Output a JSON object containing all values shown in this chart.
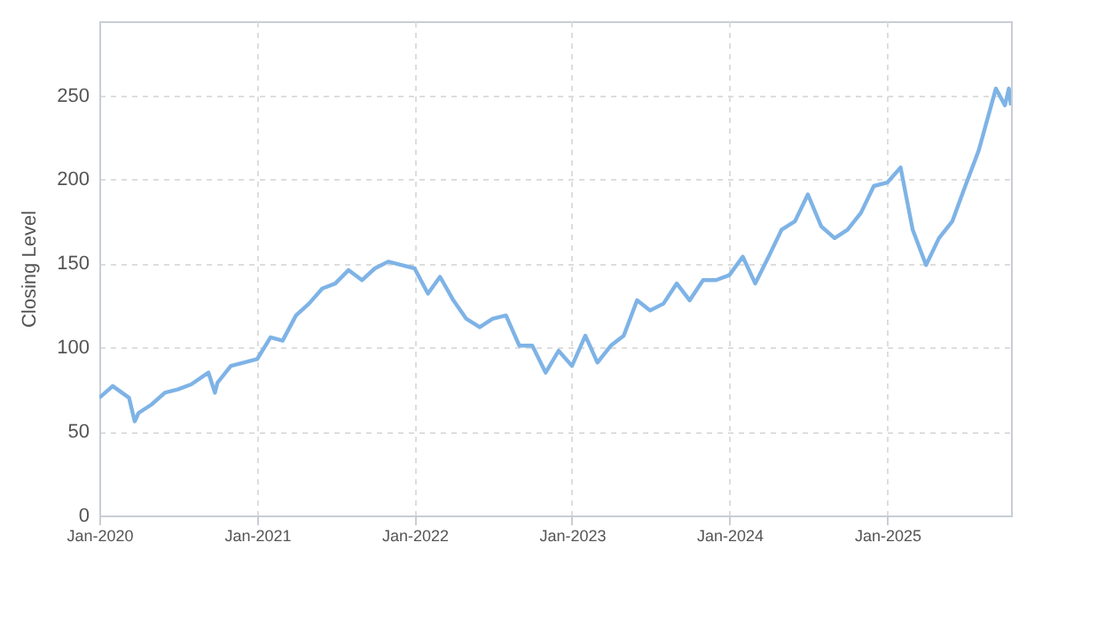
{
  "chart_data": {
    "type": "line",
    "ylabel": "Closing Level",
    "x": [
      "2020-01-01",
      "2020-02-01",
      "2020-03-10",
      "2020-03-23",
      "2020-04-01",
      "2020-05-01",
      "2020-06-01",
      "2020-07-01",
      "2020-08-01",
      "2020-09-10",
      "2020-09-25",
      "2020-10-01",
      "2020-11-01",
      "2020-12-01",
      "2021-01-01",
      "2021-02-01",
      "2021-03-01",
      "2021-04-01",
      "2021-05-01",
      "2021-06-01",
      "2021-07-01",
      "2021-08-01",
      "2021-09-01",
      "2021-10-01",
      "2021-11-01",
      "2021-12-01",
      "2022-01-01",
      "2022-02-01",
      "2022-03-01",
      "2022-04-01",
      "2022-05-01",
      "2022-06-01",
      "2022-07-01",
      "2022-08-01",
      "2022-09-01",
      "2022-10-01",
      "2022-11-01",
      "2022-12-01",
      "2023-01-01",
      "2023-02-01",
      "2023-03-01",
      "2023-04-01",
      "2023-05-01",
      "2023-06-01",
      "2023-07-01",
      "2023-08-01",
      "2023-09-01",
      "2023-10-01",
      "2023-11-01",
      "2023-12-01",
      "2024-01-01",
      "2024-02-01",
      "2024-03-01",
      "2024-04-01",
      "2024-05-01",
      "2024-06-01",
      "2024-07-01",
      "2024-08-01",
      "2024-09-01",
      "2024-10-01",
      "2024-11-01",
      "2024-12-01",
      "2025-01-01",
      "2025-02-01",
      "2025-03-01",
      "2025-04-01",
      "2025-05-01",
      "2025-06-01",
      "2025-07-01",
      "2025-08-01",
      "2025-09-10",
      "2025-10-01",
      "2025-10-10",
      "2025-10-15"
    ],
    "series": [
      {
        "color": "#7eb3e6",
        "values": [
          70,
          77,
          70,
          56,
          61,
          66,
          73,
          75,
          78,
          85,
          73,
          79,
          89,
          91,
          93,
          106,
          104,
          119,
          126,
          135,
          138,
          146,
          140,
          147,
          151,
          149,
          147,
          132,
          142,
          128,
          117,
          112,
          117,
          119,
          101,
          101,
          85,
          98,
          89,
          107,
          91,
          101,
          107,
          128,
          122,
          126,
          138,
          128,
          140,
          140,
          143,
          154,
          138,
          154,
          170,
          175,
          191,
          172,
          165,
          170,
          180,
          196,
          198,
          207,
          170,
          149,
          165,
          175,
          196,
          217,
          254,
          244,
          254,
          244
        ]
      }
    ],
    "xlim": [
      "2020-01-01",
      "2025-10-15"
    ],
    "xticks": [
      {
        "value": "2020-01-01",
        "label": "Jan-2020"
      },
      {
        "value": "2021-01-01",
        "label": "Jan-2021"
      },
      {
        "value": "2022-01-01",
        "label": "Jan-2022"
      },
      {
        "value": "2023-01-01",
        "label": "Jan-2023"
      },
      {
        "value": "2024-01-01",
        "label": "Jan-2024"
      },
      {
        "value": "2025-01-01",
        "label": "Jan-2025"
      }
    ],
    "ylim": [
      0,
      294
    ],
    "yticks": [
      0,
      50,
      100,
      150,
      200,
      250
    ],
    "grid": true
  }
}
